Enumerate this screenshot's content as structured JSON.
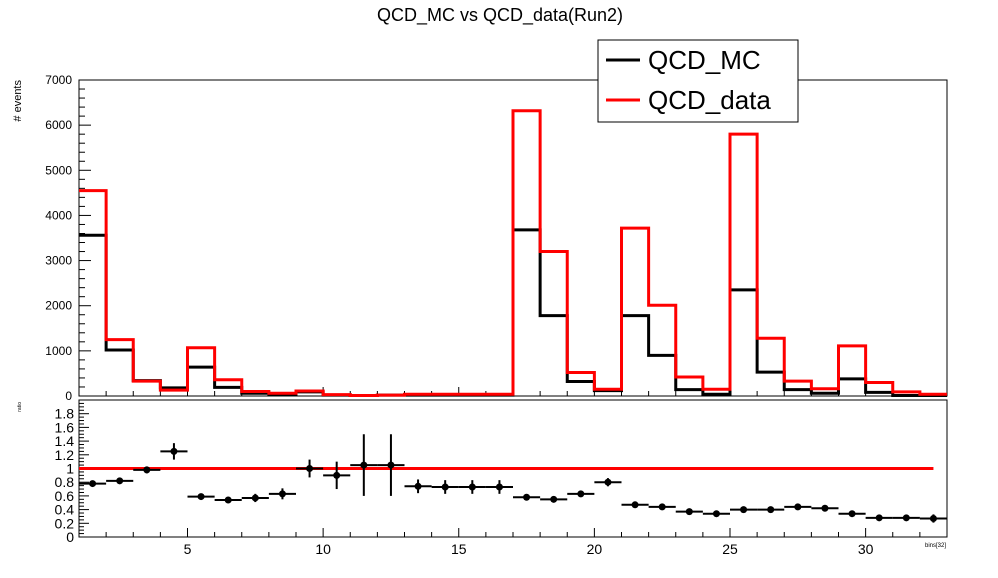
{
  "chart_data": {
    "title": "QCD_MC vs QCD_data(Run2)",
    "type": "step-histogram-with-ratio",
    "x": [
      1,
      2,
      3,
      4,
      5,
      6,
      7,
      8,
      9,
      10,
      11,
      12,
      13,
      14,
      15,
      16,
      17,
      18,
      19,
      20,
      21,
      22,
      23,
      24,
      25,
      26,
      27,
      28,
      29,
      30,
      31,
      32
    ],
    "xlim": [
      1,
      33
    ],
    "x_ticks": [
      "5",
      "10",
      "15",
      "20",
      "25",
      "30"
    ],
    "x_tick_values": [
      5,
      10,
      15,
      20,
      25,
      30
    ],
    "xlabel": "bins[32]",
    "top": {
      "ylabel": "# events",
      "ylim": [
        0,
        7000
      ],
      "y_ticks": [
        "0",
        "1000",
        "2000",
        "3000",
        "4000",
        "5000",
        "6000",
        "7000"
      ],
      "y_tick_values": [
        0,
        1000,
        2000,
        3000,
        4000,
        5000,
        6000,
        7000
      ],
      "legend_position": "top-right",
      "series": [
        {
          "name": "QCD_MC",
          "color": "#000000",
          "values": [
            3560,
            1020,
            340,
            180,
            640,
            190,
            60,
            40,
            90,
            20,
            10,
            20,
            20,
            20,
            20,
            20,
            3680,
            1780,
            320,
            120,
            1780,
            900,
            140,
            40,
            2350,
            530,
            140,
            60,
            380,
            80,
            10,
            10
          ]
        },
        {
          "name": "QCD_data",
          "color": "#ff0000",
          "values": [
            4550,
            1250,
            330,
            130,
            1070,
            360,
            100,
            60,
            110,
            30,
            10,
            20,
            40,
            40,
            40,
            40,
            6320,
            3200,
            520,
            150,
            3720,
            2010,
            420,
            150,
            5800,
            1280,
            330,
            160,
            1110,
            300,
            90,
            40
          ]
        }
      ]
    },
    "bottom": {
      "ylabel": "ratio",
      "ylim": [
        0,
        2
      ],
      "y_ticks": [
        "0",
        "0.2",
        "0.4",
        "0.6",
        "0.8",
        "1",
        "1.2",
        "1.4",
        "1.6",
        "1.8"
      ],
      "y_tick_values": [
        0,
        0.2,
        0.4,
        0.6,
        0.8,
        1.0,
        1.2,
        1.4,
        1.6,
        1.8
      ],
      "reference_line": 1.0,
      "reference_color": "#ff0000",
      "ratio": [
        0.78,
        0.82,
        0.98,
        1.25,
        0.59,
        0.54,
        0.57,
        0.63,
        1.0,
        0.9,
        1.05,
        1.05,
        0.74,
        0.73,
        0.73,
        0.73,
        0.58,
        0.55,
        0.63,
        0.8,
        0.47,
        0.44,
        0.37,
        0.34,
        0.4,
        0.4,
        0.44,
        0.42,
        0.34,
        0.28,
        0.28,
        0.27
      ],
      "errors": [
        0.03,
        0.03,
        0.05,
        0.12,
        0.02,
        0.03,
        0.06,
        0.08,
        0.13,
        0.2,
        0.45,
        0.45,
        0.1,
        0.1,
        0.1,
        0.1,
        0.02,
        0.02,
        0.03,
        0.06,
        0.02,
        0.02,
        0.03,
        0.03,
        0.02,
        0.02,
        0.03,
        0.04,
        0.04,
        0.03,
        0.04,
        0.06
      ]
    }
  }
}
